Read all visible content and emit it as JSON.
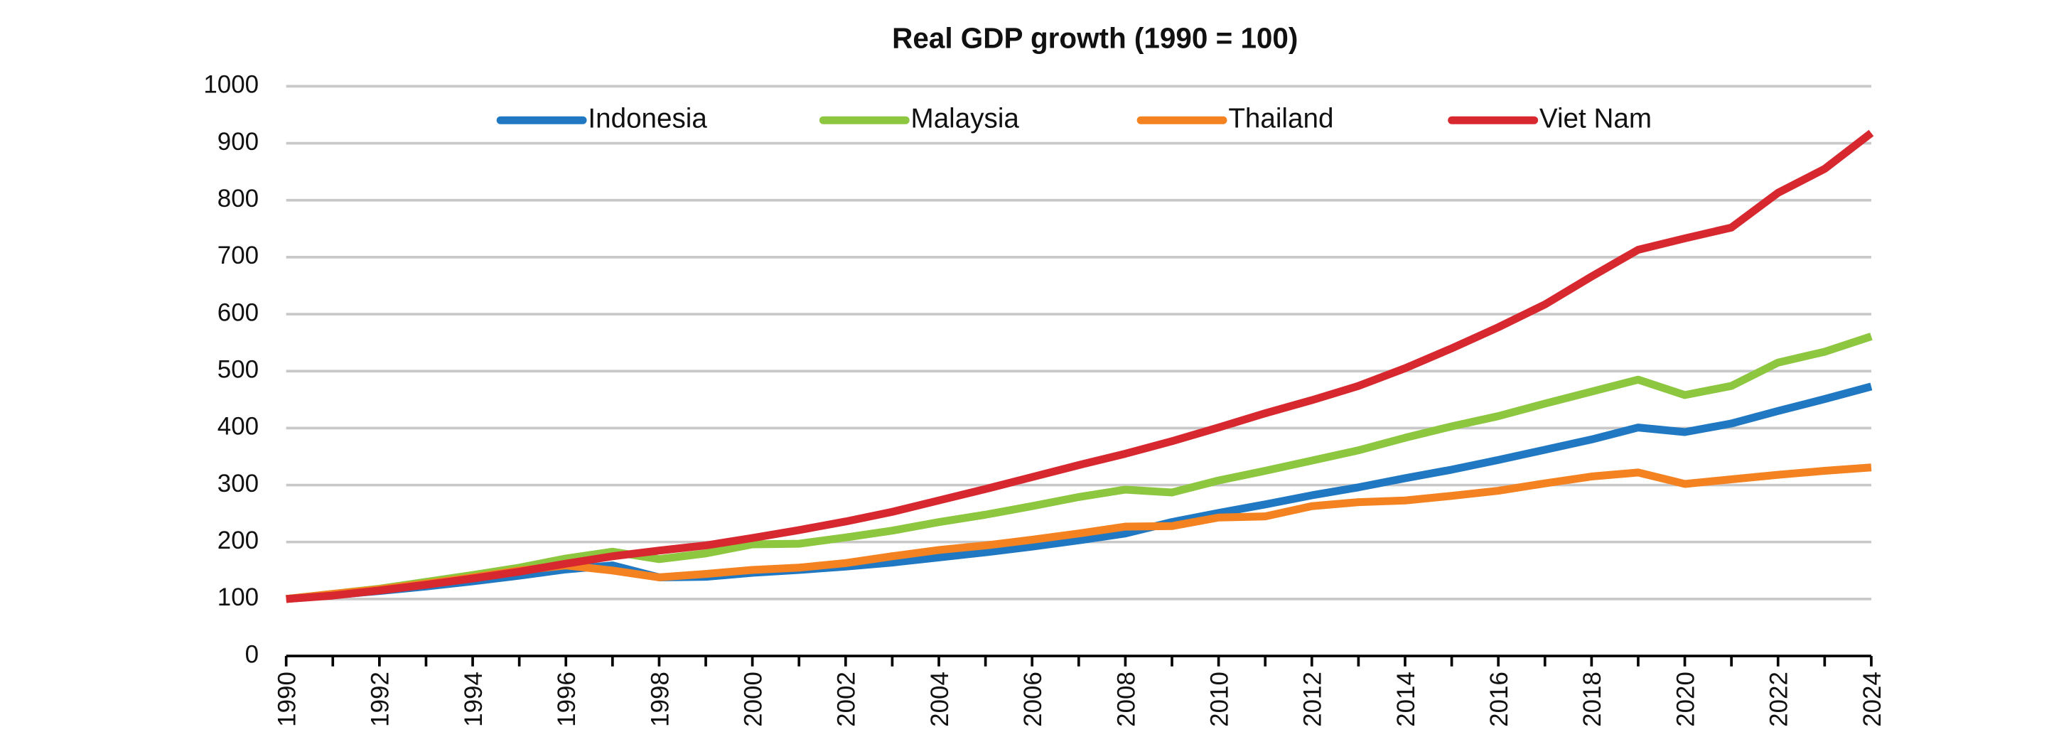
{
  "chart_data": {
    "type": "line",
    "title": "Real GDP growth (1990 = 100)",
    "x": [
      1990,
      1991,
      1992,
      1993,
      1994,
      1995,
      1996,
      1997,
      1998,
      1999,
      2000,
      2001,
      2002,
      2003,
      2004,
      2005,
      2006,
      2007,
      2008,
      2009,
      2010,
      2011,
      2012,
      2013,
      2014,
      2015,
      2016,
      2017,
      2018,
      2019,
      2020,
      2021,
      2022,
      2023,
      2024
    ],
    "series": [
      {
        "name": "Indonesia",
        "color": "#1f78c1",
        "values": [
          100,
          107,
          114,
          122,
          131,
          141,
          152,
          159,
          138,
          139,
          146,
          151,
          157,
          164,
          173,
          182,
          192,
          203,
          215,
          235,
          251,
          266,
          282,
          296,
          312,
          327,
          344,
          362,
          380,
          401,
          393,
          408,
          430,
          451,
          473
        ]
      },
      {
        "name": "Malaysia",
        "color": "#8dc63f",
        "values": [
          100,
          109,
          118,
          130,
          142,
          155,
          171,
          183,
          170,
          180,
          196,
          197,
          208,
          220,
          235,
          248,
          263,
          279,
          292,
          287,
          308,
          325,
          343,
          361,
          383,
          403,
          421,
          443,
          464,
          485,
          458,
          474,
          515,
          534,
          561
        ]
      },
      {
        "name": "Thailand",
        "color": "#f58220",
        "values": [
          100,
          109,
          117,
          127,
          138,
          150,
          159,
          150,
          138,
          144,
          151,
          155,
          163,
          175,
          186,
          194,
          204,
          215,
          227,
          228,
          243,
          245,
          263,
          270,
          273,
          281,
          290,
          303,
          315,
          322,
          302,
          310,
          318,
          325,
          331
        ]
      },
      {
        "name": "Viet Nam",
        "color": "#d7282f",
        "values": [
          100,
          106,
          115,
          125,
          136,
          148,
          162,
          175,
          185,
          194,
          207,
          221,
          236,
          253,
          273,
          293,
          314,
          335,
          355,
          377,
          401,
          426,
          449,
          474,
          505,
          540,
          577,
          617,
          666,
          713,
          733,
          752,
          813,
          855,
          918
        ]
      }
    ],
    "xlim": [
      1990,
      2024
    ],
    "xticks": [
      1990,
      1992,
      1994,
      1996,
      1998,
      2000,
      2002,
      2004,
      2006,
      2008,
      2010,
      2012,
      2014,
      2016,
      2018,
      2020,
      2022,
      2024
    ],
    "ylim": [
      0,
      1000
    ],
    "yticks": [
      0,
      100,
      200,
      300,
      400,
      500,
      600,
      700,
      800,
      900,
      1000
    ],
    "grid": true,
    "legend": "top"
  }
}
